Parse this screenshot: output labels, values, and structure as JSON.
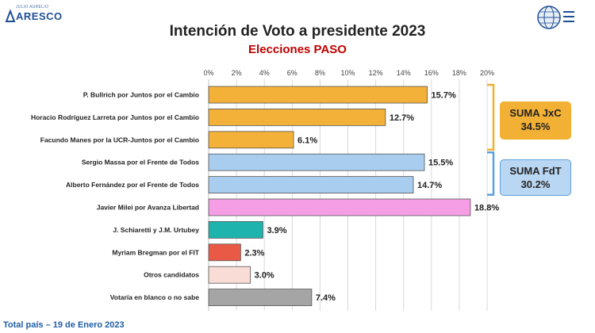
{
  "header": {
    "logo_left_small": "JULIO AURELIO",
    "logo_left_big": "ARESCO",
    "logo_right_name": "ARESCO-NATIONAL-RESEARCH"
  },
  "footer": "Total país – 19 de Enero 2023",
  "groups": [
    {
      "label": "SUMA JxC",
      "value": "34.5%",
      "color": "#f2b134",
      "bracket_color": "#f0b030"
    },
    {
      "label": "SUMA FdT",
      "value": "30.2%",
      "color": "#b9d6f2",
      "bracket_color": "#5aa0e0"
    }
  ],
  "chart_data": {
    "type": "bar",
    "orientation": "horizontal",
    "title": "Intención de Voto a presidente 2023",
    "subtitle": "Elecciones PASO",
    "categories": [
      "P. Bullrich por Juntos por el Cambio",
      "Horacio Rodríguez Larreta por Juntos por el Cambio",
      "Facundo Manes por la UCR-Juntos por el Cambio",
      "Sergio Massa por el Frente de Todos",
      "Alberto Fernández por el Frente de Todos",
      "Javier Milei por Avanza Libertad",
      "J. Schiaretti y J.M. Urtubey",
      "Myriam Bregman por el FIT",
      "Otros candidatos",
      "Votaría en blanco o no sabe"
    ],
    "values": [
      15.7,
      12.7,
      6.1,
      15.5,
      14.7,
      18.8,
      3.9,
      2.3,
      3.0,
      7.4
    ],
    "value_labels": [
      "15.7%",
      "12.7%",
      "6.1%",
      "15.5%",
      "14.7%",
      "18.8%",
      "3.9%",
      "2.3%",
      "3.0%",
      "7.4%"
    ],
    "colors": [
      "#f4b13a",
      "#f4b13a",
      "#f4b13a",
      "#a9cdee",
      "#a9cdee",
      "#f59ee6",
      "#1fb3ad",
      "#e85a45",
      "#f9dcd6",
      "#a5a5a5"
    ],
    "xlim": [
      0,
      20
    ],
    "ticks": [
      "0%",
      "2%",
      "4%",
      "6%",
      "8%",
      "10%",
      "12%",
      "14%",
      "16%",
      "18%",
      "20%"
    ],
    "grid": true
  }
}
